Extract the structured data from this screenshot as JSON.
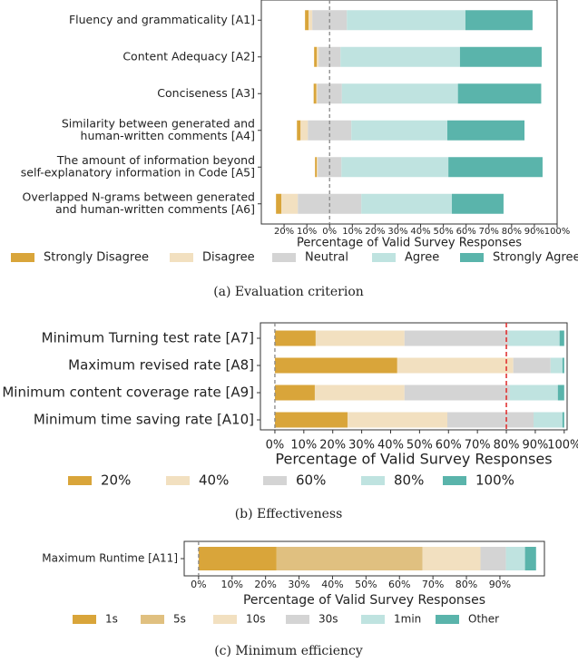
{
  "chart_data": [
    {
      "type": "diverging",
      "caption": "(a) Evaluation criterion",
      "xlabel": "Percentage of Valid Survey Responses",
      "categories": [
        [
          "Fluency and grammaticality [A1]"
        ],
        [
          "Content Adequacy [A2]"
        ],
        [
          "Conciseness [A3]"
        ],
        [
          "Similarity between generated and",
          "human-written comments [A4]"
        ],
        [
          "The amount of information beyond",
          "self-explanatory information in Code [A5]"
        ],
        [
          "Overlapped N-grams between generated",
          "and human-written comments [A6]"
        ]
      ],
      "series": [
        {
          "name": "Strongly Disagree",
          "color": "#d9a53a",
          "values": [
            1.6,
            1.2,
            1.2,
            1.6,
            0.8,
            2.4
          ]
        },
        {
          "name": "Disagree",
          "color": "#f2e0c0",
          "values": [
            1.6,
            0.8,
            0.4,
            3.2,
            0.4,
            7.2
          ]
        },
        {
          "name": "Neutral",
          "color": "#d4d4d4",
          "values": [
            15.2,
            9.6,
            10.8,
            19.1,
            10.4,
            27.9
          ]
        },
        {
          "name": "Agree",
          "color": "#bfe3e0",
          "values": [
            52.1,
            52.5,
            51,
            42.2,
            47,
            39.8
          ]
        },
        {
          "name": "Strongly Agree",
          "color": "#5ab4ab",
          "values": [
            29.5,
            35.9,
            36.6,
            33.9,
            41.4,
            22.7
          ]
        }
      ],
      "xlim": [
        -30,
        100
      ],
      "xticks": [
        {
          "value": -20,
          "label": "20%"
        },
        {
          "value": -10,
          "label": "10%"
        },
        {
          "value": 0,
          "label": "0%"
        },
        {
          "value": 10,
          "label": "10%"
        },
        {
          "value": 20,
          "label": "20%"
        },
        {
          "value": 30,
          "label": "30%"
        },
        {
          "value": 40,
          "label": "40%"
        },
        {
          "value": 50,
          "label": "50%"
        },
        {
          "value": 60,
          "label": "60%"
        },
        {
          "value": 70,
          "label": "70%"
        },
        {
          "value": 80,
          "label": "80%"
        },
        {
          "value": 90,
          "label": "90%"
        },
        {
          "value": 100,
          "label": "100%"
        }
      ]
    },
    {
      "type": "bar",
      "caption": "(b) Effectiveness",
      "xlabel": "Percentage of Valid Survey Responses",
      "categories": [
        [
          "Minimum Turning test rate [A7]"
        ],
        [
          "Maximum revised rate [A8]"
        ],
        [
          "Minimum content coverage rate [A9]"
        ],
        [
          "Minimum time saving rate [A10]"
        ]
      ],
      "series": [
        {
          "name": "20%",
          "color": "#d9a53a",
          "values": [
            14.1,
            42.3,
            13.8,
            25.1
          ]
        },
        {
          "name": "40%",
          "color": "#f2e0c0",
          "values": [
            30.7,
            40.1,
            31,
            34.5
          ]
        },
        {
          "name": "60%",
          "color": "#d4d4d4",
          "values": [
            36,
            12.9,
            36.4,
            29.8
          ]
        },
        {
          "name": "80%",
          "color": "#bfe3e0",
          "values": [
            17.6,
            4.1,
            16.6,
            10
          ]
        },
        {
          "name": "100%",
          "color": "#5ab4ab",
          "values": [
            1.6,
            0.6,
            2.2,
            0.6
          ]
        }
      ],
      "reference_line": {
        "value": 80,
        "color": "#e02828"
      },
      "xlim": [
        -5,
        101
      ],
      "xticks": [
        {
          "value": 0,
          "label": "0%"
        },
        {
          "value": 10,
          "label": "10%"
        },
        {
          "value": 20,
          "label": "20%"
        },
        {
          "value": 30,
          "label": "30%"
        },
        {
          "value": 40,
          "label": "40%"
        },
        {
          "value": 50,
          "label": "50%"
        },
        {
          "value": 60,
          "label": "60%"
        },
        {
          "value": 70,
          "label": "70%"
        },
        {
          "value": 80,
          "label": "80%"
        },
        {
          "value": 90,
          "label": "90%"
        },
        {
          "value": 100,
          "label": "100%"
        }
      ]
    },
    {
      "type": "bar",
      "caption": "(c) Minimum efficiency",
      "xlabel": "Percentage of Valid Survey Responses",
      "categories": [
        [
          "Maximum Runtime [A11]"
        ]
      ],
      "series": [
        {
          "name": "1s",
          "color": "#d9a53a",
          "values": [
            23.3
          ]
        },
        {
          "name": "5s",
          "color": "#e0c080",
          "values": [
            43.6
          ]
        },
        {
          "name": "10s",
          "color": "#f2e0c0",
          "values": [
            17.3
          ]
        },
        {
          "name": "30s",
          "color": "#d4d4d4",
          "values": [
            7.6
          ]
        },
        {
          "name": "1min",
          "color": "#bfe3e0",
          "values": [
            5.7
          ]
        },
        {
          "name": "Other",
          "color": "#5ab4ab",
          "values": [
            3.3
          ]
        }
      ],
      "xlim": [
        -4.3,
        103.3
      ],
      "xticks": [
        {
          "value": 0,
          "label": "0%"
        },
        {
          "value": 10,
          "label": "10%"
        },
        {
          "value": 20,
          "label": "20%"
        },
        {
          "value": 30,
          "label": "30%"
        },
        {
          "value": 40,
          "label": "40%"
        },
        {
          "value": 50,
          "label": "50%"
        },
        {
          "value": 60,
          "label": "60%"
        },
        {
          "value": 70,
          "label": "70%"
        },
        {
          "value": 80,
          "label": "80%"
        },
        {
          "value": 90,
          "label": "90%"
        }
      ]
    }
  ]
}
